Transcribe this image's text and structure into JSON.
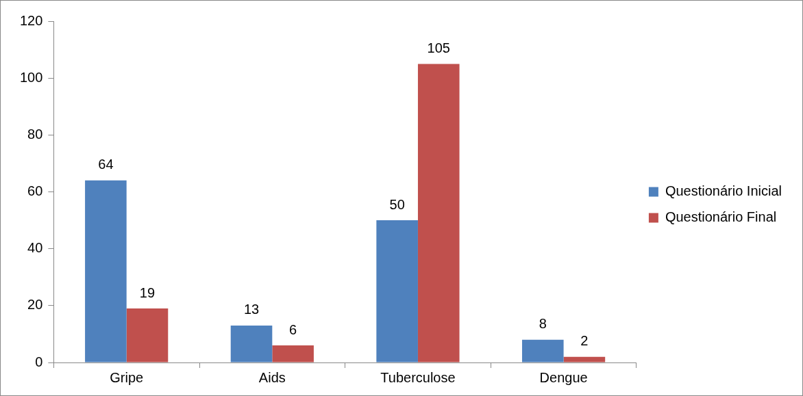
{
  "chart_data": {
    "type": "bar",
    "categories": [
      "Gripe",
      "Aids",
      "Tuberculose",
      "Dengue"
    ],
    "series": [
      {
        "name": "Questionário Inicial",
        "color": "#4f81bd",
        "values": [
          64,
          13,
          50,
          8
        ]
      },
      {
        "name": "Questionário Final",
        "color": "#c0504d",
        "values": [
          19,
          6,
          105,
          2
        ]
      }
    ],
    "ylim": [
      0,
      120
    ],
    "yticks": [
      0,
      20,
      40,
      60,
      80,
      100,
      120
    ],
    "grid": false,
    "legend": "right",
    "data_labels": true
  }
}
